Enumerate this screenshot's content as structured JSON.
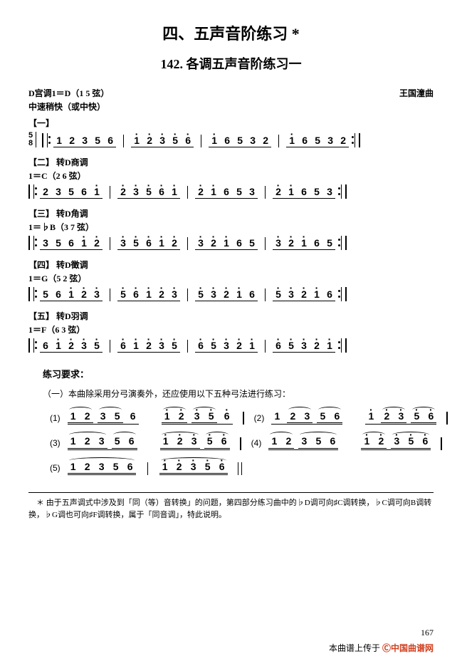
{
  "title_main": "四、五声音阶练习 *",
  "title_sub": "142. 各调五声音阶练习一",
  "key_info": "D宫调1＝D（1 5 弦）",
  "composer": "王国潼曲",
  "tempo": "中速稍快（或中快）",
  "sections": [
    {
      "label": "【一】",
      "mode": "",
      "key": "",
      "time_sig": {
        "num": "5",
        "den": "8"
      },
      "measures": [
        [
          "1",
          "2",
          "3",
          "5",
          "6"
        ],
        [
          "1̇",
          "2̇",
          "3̇",
          "5̇",
          "6̇"
        ],
        [
          "1̇",
          "6",
          "5",
          "3",
          "2"
        ],
        [
          "1̇",
          "6",
          "5",
          "3",
          "2"
        ]
      ]
    },
    {
      "label": "【二】 转D商调",
      "mode": "",
      "key": "1＝C（2 6 弦）",
      "measures": [
        [
          "2",
          "3",
          "5",
          "6",
          "1̇"
        ],
        [
          "2̇",
          "3̇",
          "5̇",
          "6̇",
          "1̇"
        ],
        [
          "2̇",
          "1̇",
          "6",
          "5",
          "3"
        ],
        [
          "2̇",
          "1̇",
          "6",
          "5",
          "3"
        ]
      ]
    },
    {
      "label": "【三】 转D角调",
      "mode": "",
      "key": "1＝♭B（3 7 弦）",
      "measures": [
        [
          "3",
          "5",
          "6",
          "1̇",
          "2̇"
        ],
        [
          "3̇",
          "5̇",
          "6̇",
          "1̇",
          "2̇"
        ],
        [
          "3̇",
          "2̇",
          "1̇",
          "6",
          "5"
        ],
        [
          "3̇",
          "2̇",
          "1̇",
          "6",
          "5"
        ]
      ]
    },
    {
      "label": "【四】 转D徵调",
      "mode": "",
      "key": "1＝G（5 2 弦）",
      "measures": [
        [
          "5",
          "6",
          "1̇",
          "2̇",
          "3̇"
        ],
        [
          "5̇",
          "6̇",
          "1̇",
          "2̇",
          "3̇"
        ],
        [
          "5̇",
          "3̇",
          "2̇",
          "1̇",
          "6"
        ],
        [
          "5̇",
          "3̇",
          "2̇",
          "1̇",
          "6"
        ]
      ]
    },
    {
      "label": "【五】 转D羽调",
      "mode": "",
      "key": "1＝F（6 3 弦）",
      "measures": [
        [
          "6",
          "1̇",
          "2̇",
          "3̇",
          "5̇"
        ],
        [
          "6̇",
          "1̇",
          "2̇",
          "3̇",
          "5̇"
        ],
        [
          "6̇",
          "5̇",
          "3̇",
          "2̇",
          "1̇"
        ],
        [
          "6̇",
          "5̇",
          "3̇",
          "2̇",
          "1̇"
        ]
      ]
    }
  ],
  "practice_title": "练习要求：",
  "practice_text": "（一）本曲除采用分弓演奏外，还应使用以下五种弓法进行练习：",
  "practice_patterns": [
    {
      "num": "(1)",
      "groups": [
        [
          [
            "1",
            "2"
          ],
          [
            "3",
            "5"
          ],
          "6"
        ],
        [
          [
            "1̇",
            "2̇"
          ],
          [
            "3̇",
            "5̇"
          ],
          "6̇"
        ]
      ],
      "pair": "(2)",
      "groups2": [
        [
          "1",
          [
            "2",
            "3"
          ],
          [
            "5",
            "6"
          ]
        ],
        [
          "1̇",
          [
            "2̇",
            "3̇"
          ],
          [
            "5̇",
            "6̇"
          ]
        ]
      ]
    },
    {
      "num": "(3)",
      "groups": [
        [
          [
            "1",
            "2",
            "3"
          ],
          [
            "5",
            "6"
          ]
        ],
        [
          [
            "1̇",
            "2̇",
            "3̇"
          ],
          [
            "5̇",
            "6̇"
          ]
        ]
      ],
      "pair": "(4)",
      "groups2": [
        [
          [
            "1",
            "2"
          ],
          [
            "3",
            "5",
            "6"
          ]
        ],
        [
          [
            "1̇",
            "2̇"
          ],
          [
            "3̇",
            "5̇",
            "6̇"
          ]
        ]
      ]
    },
    {
      "num": "(5)",
      "groups": [
        [
          [
            "1",
            "2",
            "3",
            "5",
            "6"
          ]
        ],
        [
          [
            "1̇",
            "2̇",
            "3̇",
            "5̇",
            "6̇"
          ]
        ]
      ]
    }
  ],
  "footnote": "＊ 由于五声调式中涉及到「同（等）音转换」的问题，第四部分练习曲中的♭D调可向♯C调转换，♭C调可向B调转换，♭G调也可向♯F调转换，属于「同音调」，特此说明。",
  "page_num": "167",
  "watermark_text": "本曲谱上传于",
  "watermark_logo": "Ⓒ中国曲谱网"
}
